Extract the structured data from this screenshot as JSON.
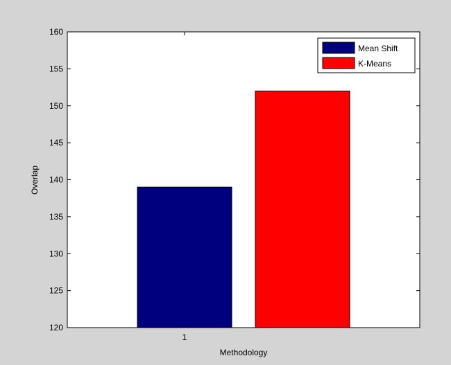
{
  "chart_data": {
    "type": "bar",
    "categories": [
      "1"
    ],
    "series": [
      {
        "name": "Mean Shift",
        "values": [
          139
        ],
        "color": "#00007f"
      },
      {
        "name": "K-Means",
        "values": [
          152
        ],
        "color": "#ff0000"
      }
    ],
    "title": "",
    "xlabel": "Methodology",
    "ylabel": "Overlap",
    "ylim": [
      120,
      160
    ],
    "yticks": [
      120,
      125,
      130,
      135,
      140,
      145,
      150,
      155,
      160
    ],
    "grid": false,
    "legend": "top-right"
  },
  "colors": {
    "figure_background": "#d4d4d4",
    "plot_background": "#ffffff"
  }
}
